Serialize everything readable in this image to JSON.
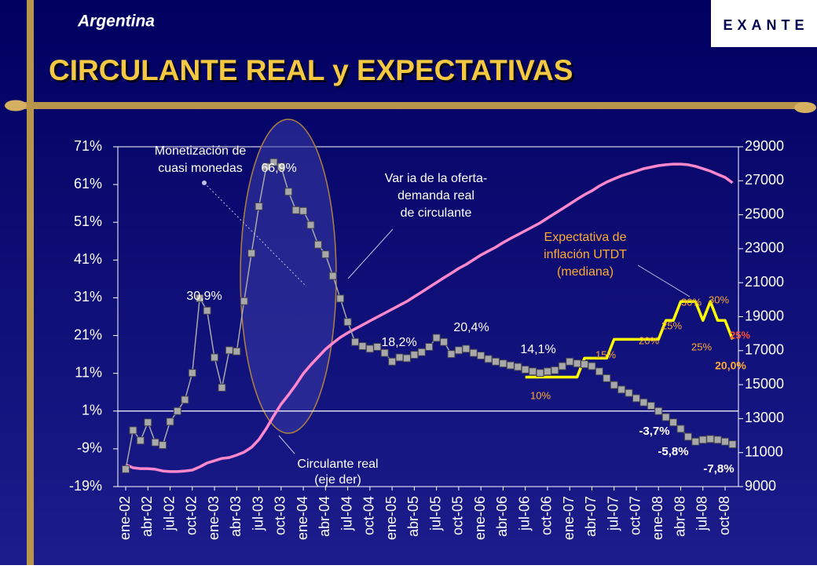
{
  "header": "Argentina",
  "logo": "EXANTE",
  "chart_data": {
    "type": "line",
    "title": "CIRCULANTE REAL y EXPECTATIVAS",
    "categories": [
      "ene-02",
      null,
      null,
      "abr-02",
      null,
      null,
      "jul-02",
      null,
      null,
      "oct-02",
      null,
      null,
      "ene-03",
      null,
      null,
      "abr-03",
      null,
      null,
      "jul-03",
      null,
      null,
      "oct-03",
      null,
      null,
      "ene-04",
      null,
      null,
      "abr-04",
      null,
      null,
      "jul-04",
      null,
      null,
      "oct-04",
      null,
      null,
      "ene-05",
      null,
      null,
      "abr-05",
      null,
      null,
      "jul-05",
      null,
      null,
      "oct-05",
      null,
      null,
      "ene-06",
      null,
      null,
      "abr-06",
      null,
      null,
      "jul-06",
      null,
      null,
      "oct-06",
      null,
      null,
      "ene-07",
      null,
      null,
      "abr-07",
      null,
      null,
      "jul-07",
      null,
      null,
      "oct-07",
      null,
      null,
      "ene-08",
      null,
      null,
      "abr-08",
      null,
      null,
      "jul-08",
      null,
      null,
      "oct-08",
      null
    ],
    "series": [
      {
        "name": "Var ia de la oferta-demanda real de circulante",
        "color": "#a8a8a8",
        "marker": "square",
        "values": [
          -14.4,
          -4.1,
          -6.8,
          -2.0,
          -7.3,
          -8.0,
          -1.8,
          1.0,
          4.0,
          11.1,
          30.9,
          27.6,
          15.2,
          7.2,
          17.1,
          16.8,
          30.1,
          42.8,
          55.2,
          65.7,
          66.9,
          65.7,
          59.1,
          54.2,
          54.0,
          50.3,
          45.1,
          42.5,
          36.8,
          30.8,
          24.6,
          19.3,
          18.2,
          17.5,
          18.0,
          16.4,
          14.1,
          15.2,
          15.0,
          15.9,
          16.6,
          18.0,
          20.4,
          19.3,
          16.1,
          17.1,
          17.5,
          16.4,
          15.7,
          14.8,
          14.1,
          13.6,
          13.1,
          12.7,
          12.0,
          11.5,
          11.1,
          11.5,
          11.8,
          12.9,
          14.1,
          13.6,
          13.4,
          12.9,
          11.5,
          9.7,
          7.9,
          6.7,
          5.8,
          4.4,
          3.3,
          2.4,
          1.0,
          -0.6,
          -2.0,
          -3.7,
          -5.8,
          -7.1,
          -6.6,
          -6.4,
          -6.6,
          -7.1,
          -7.8
        ]
      },
      {
        "name": "Circulante real",
        "color": "#ff88cc",
        "axis": "y2",
        "values": [
          10290,
          10110,
          10060,
          10060,
          10020,
          9920,
          9880,
          9880,
          9920,
          9970,
          10160,
          10390,
          10520,
          10660,
          10710,
          10850,
          11030,
          11310,
          11770,
          12420,
          13160,
          13850,
          14400,
          15000,
          15650,
          16160,
          16620,
          17080,
          17450,
          17780,
          18050,
          18280,
          18510,
          18750,
          18980,
          19210,
          19440,
          19670,
          19900,
          20180,
          20450,
          20730,
          21010,
          21290,
          21560,
          21840,
          22070,
          22350,
          22630,
          22860,
          23090,
          23360,
          23600,
          23830,
          24060,
          24290,
          24520,
          24800,
          25080,
          25350,
          25630,
          25910,
          26180,
          26410,
          26690,
          26920,
          27110,
          27290,
          27430,
          27570,
          27710,
          27800,
          27890,
          27940,
          27980,
          27980,
          27940,
          27850,
          27710,
          27570,
          27380,
          27200,
          26880
        ]
      },
      {
        "name": "Expectativa de inflación UTDT (mediana)",
        "color": "#ffff00",
        "values": [
          null,
          null,
          null,
          null,
          null,
          null,
          null,
          null,
          null,
          null,
          null,
          null,
          null,
          null,
          null,
          null,
          null,
          null,
          null,
          null,
          null,
          null,
          null,
          null,
          null,
          null,
          null,
          null,
          null,
          null,
          null,
          null,
          null,
          null,
          null,
          null,
          null,
          null,
          null,
          null,
          null,
          null,
          null,
          null,
          null,
          null,
          null,
          null,
          null,
          null,
          null,
          null,
          null,
          null,
          10,
          10,
          10,
          10,
          10,
          10,
          10,
          10,
          15,
          15,
          15,
          15,
          20,
          20,
          20,
          20,
          20,
          20,
          20,
          25,
          25,
          30,
          30,
          30,
          25,
          30,
          25,
          25,
          20
        ]
      }
    ],
    "ylim": [
      -19,
      71
    ],
    "yticks": [
      {
        "value": -19,
        "label": "-19%"
      },
      {
        "value": -9,
        "label": "-9%"
      },
      {
        "value": 1,
        "label": "1%"
      },
      {
        "value": 11,
        "label": "11%"
      },
      {
        "value": 21,
        "label": "21%"
      },
      {
        "value": 31,
        "label": "31%"
      },
      {
        "value": 41,
        "label": "41%"
      },
      {
        "value": 51,
        "label": "51%"
      },
      {
        "value": 61,
        "label": "61%"
      },
      {
        "value": 71,
        "label": "71%"
      }
    ],
    "y2lim": [
      9000,
      29000
    ],
    "y2ticks": [
      9000,
      11000,
      13000,
      15000,
      17000,
      19000,
      21000,
      23000,
      25000,
      27000,
      29000
    ],
    "hline": 1,
    "annotations": [
      "Monetización de",
      "cuasi monedas",
      "66,9%",
      "Var ia de la oferta-",
      "demanda real",
      "de circulante",
      "30,9%",
      "18,2%",
      "20,4%",
      "14,1%",
      "Expectativa de",
      "inflación UTDT",
      "(mediana)",
      "30%",
      "30%",
      "25%",
      "20%",
      "15%",
      "10%",
      "25%",
      "25%",
      "20,0%",
      "-3,7%",
      "-5,8%",
      "-7,8%",
      "Circulante real",
      "(eje der)"
    ]
  }
}
